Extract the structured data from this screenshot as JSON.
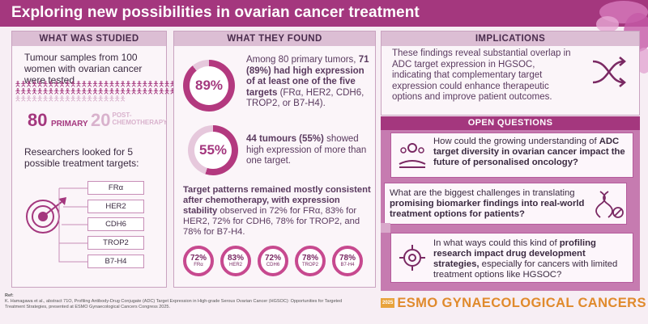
{
  "title": "Exploring new possibilities in ovarian cancer treatment",
  "studied": {
    "header": "WHAT WAS STUDIED",
    "intro": "Tumour samples from 100 women with ovarian cancer were tested",
    "primary_count": "80",
    "primary_label": "PRIMARY",
    "post_count": "20",
    "post_label_1": "POST-",
    "post_label_2": "CHEMOTHERAPY",
    "targets_intro": "Researchers looked for 5 possible treatment targets:",
    "targets": [
      "FRα",
      "HER2",
      "CDH6",
      "TROP2",
      "B7-H4"
    ]
  },
  "found": {
    "header": "WHAT THEY FOUND",
    "stat1_pct": "89%",
    "stat1_value": 0.89,
    "stat1_text_a": "Among 80 primary tumors,",
    "stat1_text_b": "71 (89%) had high expression of at least one of the five targets",
    "stat1_text_c": "(FRα, HER2, CDH6, TROP2, or B7-H4).",
    "stat2_pct": "55%",
    "stat2_value": 0.55,
    "stat2_text_a": "44 tumours (55%)",
    "stat2_text_b": "showed high expression of more than one target.",
    "consistency_bold": "Target patterns remained mostly consistent after chemotherapy, with expression stability",
    "consistency_rest": "observed in 72% for FRα, 83% for HER2, 72% for CDH6, 78% for TROP2, and 78% for B7-H4.",
    "stability": [
      {
        "pct": "72%",
        "label": "FRα"
      },
      {
        "pct": "83%",
        "label": "HER2"
      },
      {
        "pct": "72%",
        "label": "CDH6"
      },
      {
        "pct": "78%",
        "label": "TROP2"
      },
      {
        "pct": "78%",
        "label": "B7-H4"
      }
    ]
  },
  "implications": {
    "header": "IMPLICATIONS",
    "text": "These findings reveal substantial overlap in ADC target expression in HGSOC, indicating that complementary target expression could enhance therapeutic options and improve patient outcomes."
  },
  "open_questions": {
    "header": "OPEN QUESTIONS",
    "q1_a": "How could the growing understanding of",
    "q1_b": "ADC target diversity in ovarian cancer impact the future of personalised oncology?",
    "q2_a": "What are the biggest challenges in translating",
    "q2_b": "promising biomarker findings into real-world treatment options for patients?",
    "q3_a": "In what ways could this kind of",
    "q3_b": "profiling research impact drug development strategies,",
    "q3_c": "especially for cancers with limited treatment options like HGSOC?"
  },
  "reference": {
    "label": "Ref:",
    "text": "K. Hamagawa et al., abstract 71O, Profiling Antibody-Drug Conjugate (ADC) Target Expression in High-grade Serous Ovarian Cancer (HGSOC): Opportunities for Targeted Treatment Strategies, presented at ESMO Gynaecological Cancers Congress 2025."
  },
  "logo": {
    "year": "2025",
    "name": "ESMO GYNAECOLOGICAL CANCERS"
  },
  "colors": {
    "brand": "#a4377e",
    "accent": "#c7498f",
    "logo": "#e08a2c"
  }
}
